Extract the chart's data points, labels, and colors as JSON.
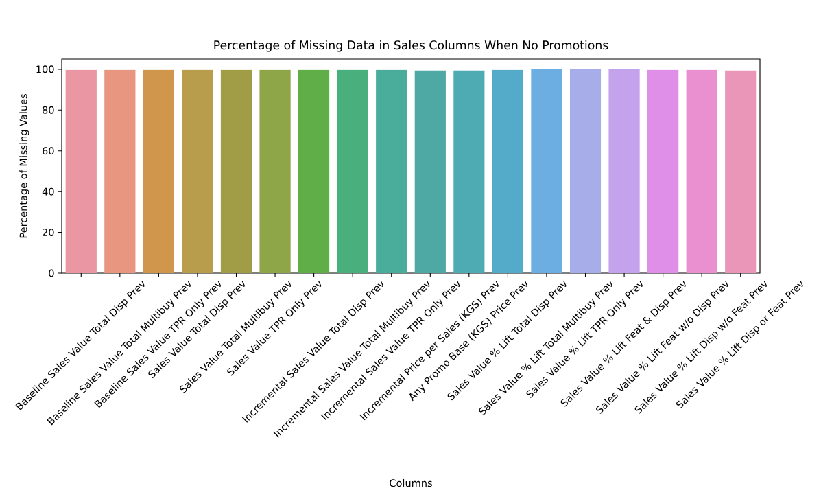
{
  "chart_data": {
    "type": "bar",
    "title": "Percentage of Missing Data in Sales Columns When No Promotions",
    "xlabel": "Columns",
    "ylabel": "Percentage of Missing Values",
    "categories": [
      "Baseline Sales Value Total Disp Prev",
      "Baseline Sales Value Total Multibuy Prev",
      "Baseline Sales Value TPR Only Prev",
      "Sales Value Total Disp Prev",
      "Sales Value Total Multibuy Prev",
      "Sales Value TPR Only Prev",
      "Incremental Sales Value Total Disp Prev",
      "Incremental Sales Value Total Multibuy Prev",
      "Incremental Sales Value TPR Only Prev",
      "Incremental Price per Sales (KGS) Prev",
      "Any Promo Base (KGS) Price Prev",
      "Sales Value % Lift Total Disp Prev",
      "Sales Value % Lift Total Multibuy Prev",
      "Sales Value % Lift TPR Only Prev",
      "Sales Value % Lift Feat & Disp Prev",
      "Sales Value % Lift Feat w/o Disp Prev",
      "Sales Value % Lift Disp w/o Feat Prev",
      "Sales Value % Lift Disp or Feat Prev"
    ],
    "values": [
      99.7,
      99.7,
      99.7,
      99.7,
      99.7,
      99.7,
      99.7,
      99.7,
      99.7,
      99.4,
      99.4,
      99.7,
      100,
      100,
      100,
      99.7,
      99.7,
      99.4
    ],
    "colors": [
      "#ea96a3",
      "#e8967f",
      "#d0964c",
      "#b89d4c",
      "#a19d47",
      "#8fa648",
      "#60ae47",
      "#49b07d",
      "#4aac9a",
      "#4ea9a4",
      "#4eaab3",
      "#53abc9",
      "#6daee2",
      "#a6ade9",
      "#c4a2ec",
      "#e08fe8",
      "#ea90d0",
      "#e996b8"
    ],
    "ylim": [
      0,
      105
    ],
    "yticks": [
      0,
      20,
      40,
      60,
      80,
      100
    ]
  }
}
